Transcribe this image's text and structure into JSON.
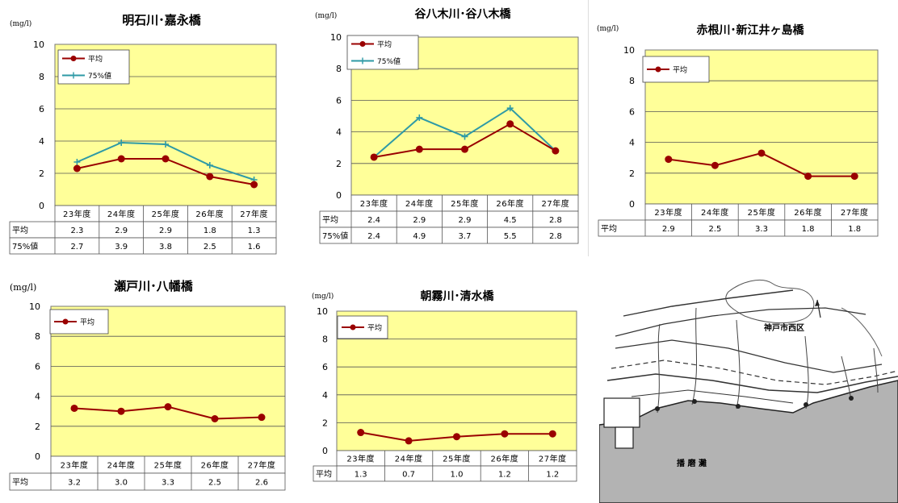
{
  "chart_data": [
    {
      "type": "line",
      "title": "明石川･嘉永橋",
      "unit": "(mg/l)",
      "categories": [
        "23年度",
        "24年度",
        "25年度",
        "26年度",
        "27年度"
      ],
      "series": [
        {
          "name": "平均",
          "values": [
            2.3,
            2.9,
            2.9,
            1.8,
            1.3
          ],
          "color": "#9a0000",
          "marker": "circle"
        },
        {
          "name": "75%値",
          "values": [
            2.7,
            3.9,
            3.8,
            2.5,
            1.6
          ],
          "color": "#2e9aa6",
          "marker": "plus"
        }
      ],
      "table": [
        {
          "label": "平均",
          "values": [
            "2.3",
            "2.9",
            "2.9",
            "1.8",
            "1.3"
          ]
        },
        {
          "label": "75%値",
          "values": [
            "2.7",
            "3.9",
            "3.8",
            "2.5",
            "1.6"
          ]
        }
      ],
      "yticks": [
        "0",
        "2",
        "4",
        "6",
        "8",
        "10"
      ],
      "ylim": [
        0,
        10
      ],
      "grid": true,
      "legend": "top-left",
      "plot_bg": "#ffff99"
    },
    {
      "type": "line",
      "title": "谷八木川･谷八木橋",
      "unit": "(mg/l)",
      "categories": [
        "23年度",
        "24年度",
        "25年度",
        "26年度",
        "27年度"
      ],
      "series": [
        {
          "name": "平均",
          "values": [
            2.4,
            2.9,
            2.9,
            4.5,
            2.8
          ],
          "color": "#9a0000",
          "marker": "circle"
        },
        {
          "name": "75%値",
          "values": [
            2.4,
            4.9,
            3.7,
            5.5,
            2.8
          ],
          "color": "#2e9aa6",
          "marker": "plus"
        }
      ],
      "table": [
        {
          "label": "平均",
          "values": [
            "2.4",
            "2.9",
            "2.9",
            "4.5",
            "2.8"
          ]
        },
        {
          "label": "75%値",
          "values": [
            "2.4",
            "4.9",
            "3.7",
            "5.5",
            "2.8"
          ]
        }
      ],
      "yticks": [
        "0",
        "2",
        "4",
        "6",
        "8",
        "10"
      ],
      "ylim": [
        0,
        10
      ],
      "grid": true,
      "legend": "top-left",
      "plot_bg": "#ffff99"
    },
    {
      "type": "line",
      "title": "赤根川･新江井ヶ島橋",
      "unit": "(mg/l)",
      "categories": [
        "23年度",
        "24年度",
        "25年度",
        "26年度",
        "27年度"
      ],
      "series": [
        {
          "name": "平均",
          "values": [
            2.9,
            2.5,
            3.3,
            1.8,
            1.8
          ],
          "color": "#9a0000",
          "marker": "circle"
        }
      ],
      "table": [
        {
          "label": "平均",
          "values": [
            "2.9",
            "2.5",
            "3.3",
            "1.8",
            "1.8"
          ]
        }
      ],
      "yticks": [
        "0",
        "2",
        "4",
        "6",
        "8",
        "10"
      ],
      "ylim": [
        0,
        10
      ],
      "grid": true,
      "legend": "top-left",
      "plot_bg": "#ffff99"
    },
    {
      "type": "line",
      "title": "瀬戸川･八幡橋",
      "unit": "(mg/l)",
      "categories": [
        "23年度",
        "24年度",
        "25年度",
        "26年度",
        "27年度"
      ],
      "series": [
        {
          "name": "平均",
          "values": [
            3.2,
            3.0,
            3.3,
            2.5,
            2.6
          ],
          "color": "#9a0000",
          "marker": "circle"
        }
      ],
      "table": [
        {
          "label": "平均",
          "values": [
            "3.2",
            "3.0",
            "3.3",
            "2.5",
            "2.6"
          ]
        }
      ],
      "yticks": [
        "0",
        "2",
        "4",
        "6",
        "8",
        "10"
      ],
      "ylim": [
        0,
        10
      ],
      "grid": true,
      "legend": "top-left",
      "plot_bg": "#ffff99"
    },
    {
      "type": "line",
      "title": "朝霧川･清水橋",
      "unit": "(mg/l)",
      "categories": [
        "23年度",
        "24年度",
        "25年度",
        "26年度",
        "27年度"
      ],
      "series": [
        {
          "name": "平均",
          "values": [
            1.3,
            0.7,
            1.0,
            1.2,
            1.2
          ],
          "color": "#9a0000",
          "marker": "circle"
        }
      ],
      "table": [
        {
          "label": "平均",
          "values": [
            "1.3",
            "0.7",
            "1.0",
            "1.2",
            "1.2"
          ]
        }
      ],
      "yticks": [
        "0",
        "2",
        "4",
        "6",
        "8",
        "10"
      ],
      "ylim": [
        0,
        10
      ],
      "grid": true,
      "legend": "top-left",
      "plot_bg": "#ffff99"
    }
  ],
  "map": {
    "district_label": "神戸市西区",
    "sea_label": "播 磨 灘"
  }
}
